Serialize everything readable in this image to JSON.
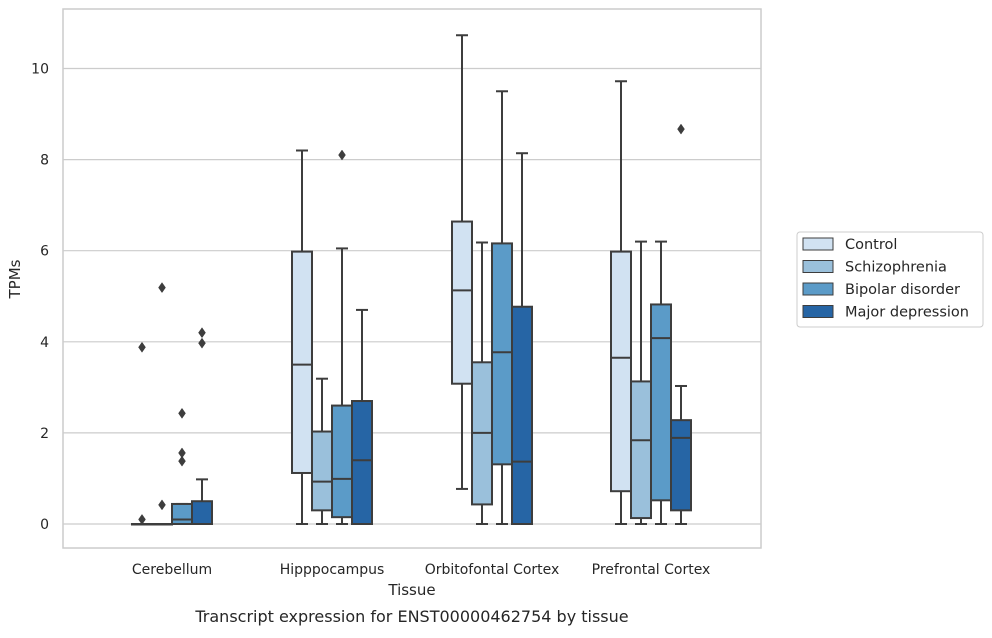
{
  "chart_data": {
    "type": "box",
    "title": "Transcript expression for ENST00000462754 by tissue",
    "xlabel": "Tissue",
    "ylabel": "TPMs",
    "ylim": [
      -0.5,
      11.3
    ],
    "yticks": [
      0,
      2,
      4,
      6,
      8,
      10
    ],
    "grid": true,
    "legend_position": "right-outside",
    "categories": [
      "Cerebellum",
      "Hipppocampus",
      "Orbitofontal Cortex",
      "Prefrontal Cortex"
    ],
    "series": [
      {
        "name": "Control",
        "color": "#d1e2f2",
        "boxes": [
          {
            "whislo": 0,
            "q1": 0,
            "med": 0,
            "q3": 0,
            "whishi": 0,
            "fliers": [
              0.1,
              3.88
            ]
          },
          {
            "whislo": 0,
            "q1": 1.12,
            "med": 3.5,
            "q3": 5.98,
            "whishi": 8.2,
            "fliers": []
          },
          {
            "whislo": 0.77,
            "q1": 3.08,
            "med": 5.13,
            "q3": 6.64,
            "whishi": 10.73,
            "fliers": []
          },
          {
            "whislo": 0,
            "q1": 0.72,
            "med": 3.65,
            "q3": 5.98,
            "whishi": 9.72,
            "fliers": []
          }
        ]
      },
      {
        "name": "Schizophrenia",
        "color": "#9ac0db",
        "boxes": [
          {
            "whislo": 0,
            "q1": 0,
            "med": 0,
            "q3": 0,
            "whishi": 0,
            "fliers": [
              5.19,
              0.42
            ]
          },
          {
            "whislo": 0,
            "q1": 0.3,
            "med": 0.93,
            "q3": 2.03,
            "whishi": 3.19,
            "fliers": []
          },
          {
            "whislo": 0,
            "q1": 0.43,
            "med": 2.0,
            "q3": 3.55,
            "whishi": 6.18,
            "fliers": []
          },
          {
            "whislo": 0,
            "q1": 0.13,
            "med": 1.84,
            "q3": 3.13,
            "whishi": 6.2,
            "fliers": []
          }
        ]
      },
      {
        "name": "Bipolar disorder",
        "color": "#5b9bc8",
        "boxes": [
          {
            "whislo": 0,
            "q1": 0.0,
            "med": 0.1,
            "q3": 0.44,
            "whishi": 0.44,
            "fliers": [
              2.43,
              1.56,
              1.38
            ]
          },
          {
            "whislo": 0,
            "q1": 0.15,
            "med": 0.99,
            "q3": 2.6,
            "whishi": 6.05,
            "fliers": [
              8.1
            ]
          },
          {
            "whislo": 0,
            "q1": 1.31,
            "med": 3.77,
            "q3": 6.16,
            "whishi": 9.5,
            "fliers": []
          },
          {
            "whislo": 0,
            "q1": 0.52,
            "med": 4.08,
            "q3": 4.82,
            "whishi": 6.2,
            "fliers": []
          }
        ]
      },
      {
        "name": "Major depression",
        "color": "#2665a5",
        "boxes": [
          {
            "whislo": 0,
            "q1": 0,
            "med": 0.0,
            "q3": 0.5,
            "whishi": 0.98,
            "fliers": [
              4.2,
              3.97
            ]
          },
          {
            "whislo": 0,
            "q1": 0,
            "med": 1.4,
            "q3": 2.7,
            "whishi": 4.7,
            "fliers": []
          },
          {
            "whislo": 0,
            "q1": 0,
            "med": 1.37,
            "q3": 4.77,
            "whishi": 8.14,
            "fliers": []
          },
          {
            "whislo": 0,
            "q1": 0.3,
            "med": 1.89,
            "q3": 2.28,
            "whishi": 3.03,
            "fliers": [
              8.67
            ]
          }
        ]
      }
    ],
    "colors": {
      "grid": "#cccccc",
      "frame": "#cccccc",
      "line": "#3d3d3d"
    }
  }
}
